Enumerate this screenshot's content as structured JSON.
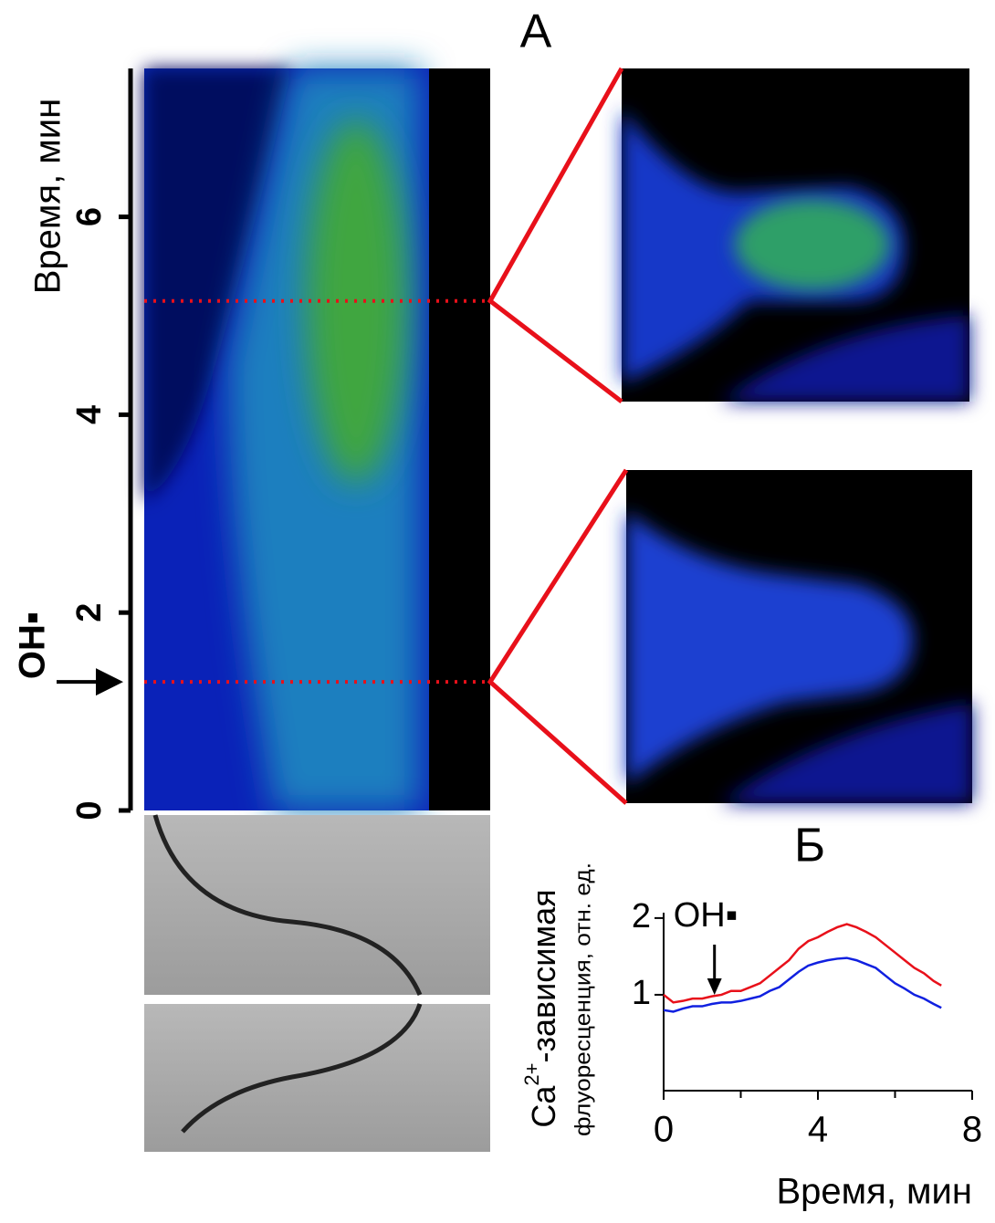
{
  "panel_a": {
    "label": "А",
    "y_label": "Время, мин",
    "ylim": [
      0,
      7.5
    ],
    "yticks": [
      0,
      2,
      4,
      6
    ],
    "stimulus_label": "OH▪",
    "stimulus_time": 1.3,
    "frames_at": [
      5.15,
      1.3
    ]
  },
  "chart_data": {
    "type": "line",
    "title": "Б",
    "x_label": "Время, мин",
    "y_label_parts": [
      "Ca",
      "2+",
      "-зависимая"
    ],
    "y_label_sub": "флуоресценция, отн. ед.",
    "annotation": {
      "text": "OH▪",
      "x": 1.2
    },
    "xlim": [
      0,
      8
    ],
    "xticks": [
      0,
      4,
      8
    ],
    "minor_xticks": [
      2,
      6
    ],
    "ylim": [
      -0.25,
      2.07
    ],
    "yticks": [
      1,
      2
    ],
    "x": [
      0,
      0.25,
      0.5,
      0.75,
      1.0,
      1.25,
      1.5,
      1.75,
      2.0,
      2.25,
      2.5,
      2.75,
      3.0,
      3.25,
      3.5,
      3.75,
      4.0,
      4.25,
      4.5,
      4.75,
      5.0,
      5.25,
      5.5,
      5.75,
      6.0,
      6.25,
      6.5,
      6.75,
      7.0,
      7.2
    ],
    "series": [
      {
        "color": "#e8101a",
        "values": [
          1.0,
          0.9,
          0.92,
          0.95,
          0.95,
          0.98,
          1.0,
          1.05,
          1.05,
          1.1,
          1.15,
          1.25,
          1.35,
          1.45,
          1.6,
          1.7,
          1.75,
          1.82,
          1.88,
          1.92,
          1.88,
          1.82,
          1.75,
          1.65,
          1.55,
          1.45,
          1.35,
          1.28,
          1.18,
          1.12
        ]
      },
      {
        "color": "#1020e0",
        "values": [
          0.8,
          0.78,
          0.82,
          0.85,
          0.85,
          0.88,
          0.9,
          0.9,
          0.92,
          0.95,
          0.98,
          1.05,
          1.1,
          1.2,
          1.3,
          1.38,
          1.42,
          1.45,
          1.47,
          1.48,
          1.45,
          1.4,
          1.35,
          1.25,
          1.15,
          1.08,
          1.0,
          0.95,
          0.88,
          0.83
        ]
      }
    ]
  }
}
